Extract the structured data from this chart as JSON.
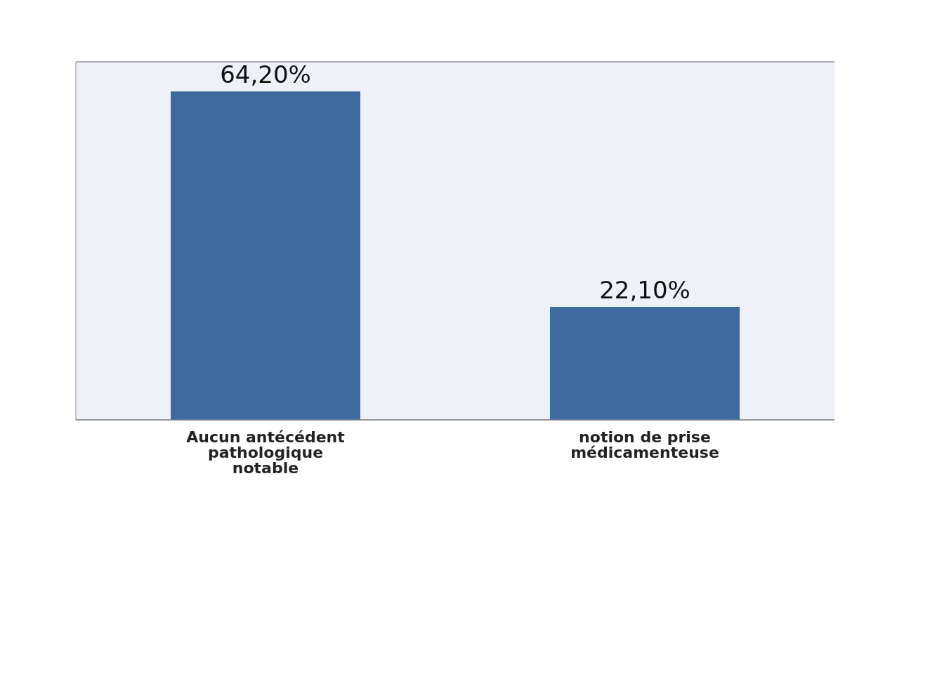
{
  "chart_data": {
    "type": "bar",
    "categories": [
      "Aucun antécédent pathologique notable",
      "notion de prise médicamenteuse"
    ],
    "values": [
      64.2,
      22.1
    ],
    "color": "#3f6aa0",
    "value_labels": [
      "64,20%",
      "22,10%"
    ],
    "ylim": [
      0,
      70
    ],
    "grid": "y",
    "tick_labels": "x"
  }
}
